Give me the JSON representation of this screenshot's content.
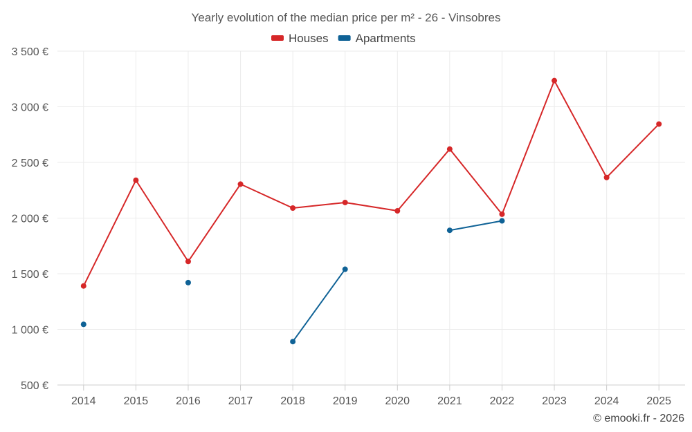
{
  "chart_data": {
    "type": "line",
    "title": "Yearly evolution of the median price per m² - 26 - Vinsobres",
    "categories": [
      "2014",
      "2015",
      "2016",
      "2017",
      "2018",
      "2019",
      "2020",
      "2021",
      "2022",
      "2023",
      "2024",
      "2025"
    ],
    "series": [
      {
        "name": "Houses",
        "color": "#d62728",
        "values": [
          1390,
          2340,
          1610,
          2305,
          2090,
          2140,
          2065,
          2620,
          2035,
          3235,
          2365,
          2845
        ]
      },
      {
        "name": "Apartments",
        "color": "#0f6296",
        "values": [
          1045,
          null,
          1420,
          null,
          890,
          1540,
          null,
          1890,
          1975,
          null,
          null,
          null
        ]
      }
    ],
    "ylim": [
      500,
      3500
    ],
    "yticks": [
      500,
      1000,
      1500,
      2000,
      2500,
      3000,
      3500
    ],
    "ytick_labels": [
      "500 €",
      "1 000 €",
      "1 500 €",
      "2 000 €",
      "2 500 €",
      "3 000 €",
      "3 500 €"
    ],
    "grid": true,
    "legend_position": "top-center",
    "xlabel": "",
    "ylabel": ""
  },
  "credit": "© emooki.fr - 2026"
}
